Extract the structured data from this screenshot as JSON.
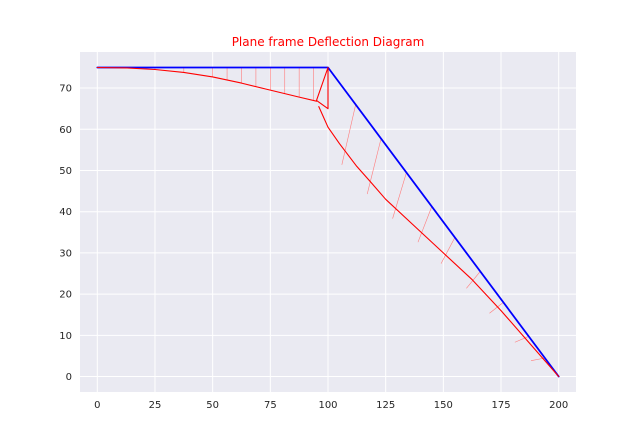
{
  "chart_data": {
    "type": "line",
    "title": "Plane frame Deflection Diagram",
    "title_color": "#ff0000",
    "xlabel": "",
    "ylabel": "",
    "xlim": [
      -7.5,
      207.5
    ],
    "ylim": [
      -3.75,
      78.75
    ],
    "x_ticks": [
      0,
      25,
      50,
      75,
      100,
      125,
      150,
      175,
      200
    ],
    "y_ticks": [
      0,
      10,
      20,
      30,
      40,
      50,
      60,
      70
    ],
    "grid": true,
    "style": {
      "plot_background": "#eaeaf2",
      "grid_color": "#ffffff",
      "undeformed_color": "#0000ff",
      "deflected_color": "#ff0000",
      "hatch_color": "#ff7b7b"
    },
    "series": [
      {
        "role": "undeformed-frame",
        "color": "#0000ff",
        "points": [
          [
            0,
            75
          ],
          [
            100,
            75
          ],
          [
            200,
            0
          ]
        ]
      },
      {
        "role": "deflected-member-1",
        "color": "#ff0000",
        "points": [
          [
            0,
            75
          ],
          [
            12.5,
            74.9
          ],
          [
            25,
            74.5
          ],
          [
            37.5,
            73.8
          ],
          [
            50,
            72.7
          ],
          [
            62.5,
            71.2
          ],
          [
            75,
            69.5
          ],
          [
            87.5,
            67.8
          ],
          [
            95,
            66.8
          ]
        ]
      },
      {
        "role": "deflected-member-2",
        "color": "#ff0000",
        "points": [
          [
            96,
            65.5
          ],
          [
            100,
            60.5
          ],
          [
            105,
            56.5
          ],
          [
            112.5,
            51
          ],
          [
            118.75,
            47
          ],
          [
            125,
            43
          ],
          [
            137.5,
            36.5
          ],
          [
            150,
            30
          ],
          [
            162.5,
            23.5
          ],
          [
            175,
            16
          ],
          [
            187.5,
            8
          ],
          [
            200,
            0
          ]
        ]
      },
      {
        "role": "rigid-joint-triangle",
        "color": "#ff0000",
        "points": [
          [
            100,
            75
          ],
          [
            95,
            67
          ],
          [
            100,
            65
          ],
          [
            100,
            75
          ]
        ]
      }
    ],
    "hatch_member1_x": [
      12.5,
      25,
      37.5,
      50,
      56.25,
      62.5,
      68.75,
      75,
      81.25,
      87.5,
      93.75
    ],
    "hatch_member2_t": [
      0.12,
      0.23,
      0.34,
      0.45,
      0.55,
      0.66,
      0.76,
      0.87,
      0.94
    ]
  }
}
